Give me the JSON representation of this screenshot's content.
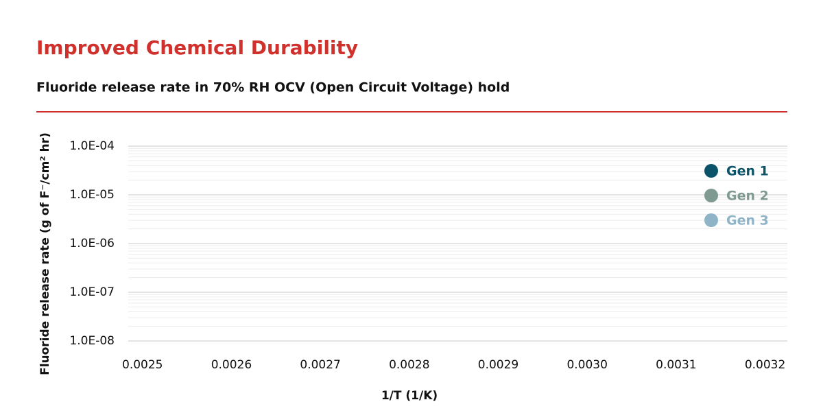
{
  "chart_data": {
    "type": "scatter",
    "title": "Improved Chemical Durability",
    "subtitle": "Fluoride release rate in 70% RH OCV (Open Circuit Voltage) hold",
    "x_label": "1/T (1/K)",
    "y_label": "Fluoride release rate (g of F⁻/cm² hr)",
    "series": [
      {
        "name": "Gen 1",
        "color": "#0b5368"
      },
      {
        "name": "Gen 2",
        "color": "#7f9a91"
      },
      {
        "name": "Gen 3",
        "color": "#8fb4c7"
      }
    ],
    "xlim": [
      0.002484,
      0.003225
    ],
    "xticks": [
      0.0025,
      0.0026,
      0.0027,
      0.0028,
      0.0029,
      {
        "value": 0.003,
        "label": "0.0030"
      },
      0.0031,
      0.0032
    ],
    "ylim": [
      1e-08,
      0.0001
    ],
    "yticks": [
      {
        "value": 0.0001,
        "label": "1.0E-04"
      },
      {
        "value": 1e-05,
        "label": "1.0E-05"
      },
      {
        "value": 1e-06,
        "label": "1.0E-06"
      },
      {
        "value": 1e-07,
        "label": "1.0E-07"
      },
      {
        "value": 1e-08,
        "label": "1.0E-08"
      }
    ],
    "y_log": true,
    "grid": true,
    "legend": "top-right"
  }
}
